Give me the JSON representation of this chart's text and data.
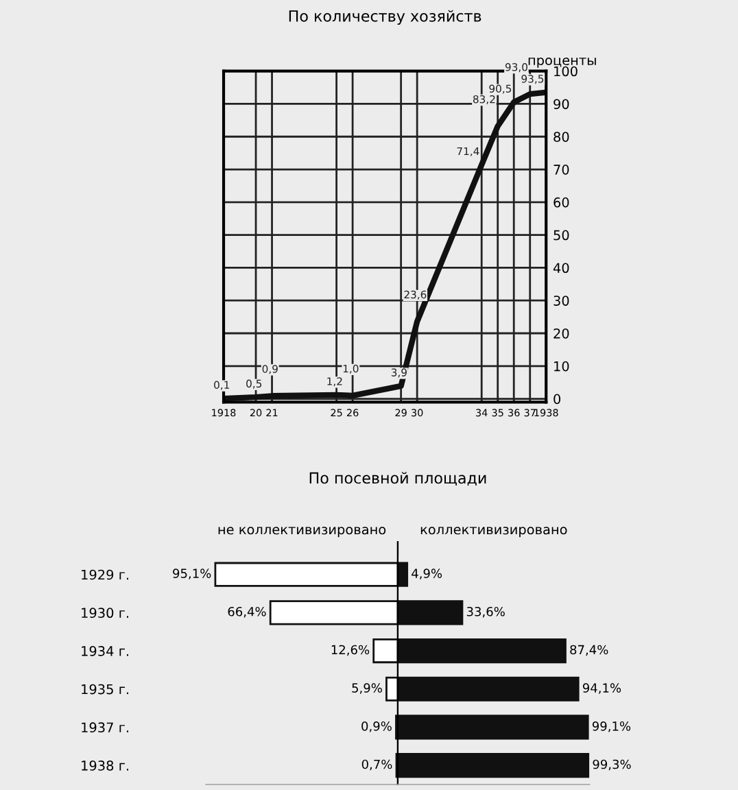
{
  "chart_data": [
    {
      "type": "line",
      "title": "По количеству хозяйств",
      "ylabel": "проценты",
      "x": [
        1918,
        1920,
        1921,
        1925,
        1926,
        1929,
        1930,
        1934,
        1935,
        1936,
        1937,
        1938
      ],
      "series": [
        {
          "color": "#111111",
          "values": [
            0.1,
            0.5,
            0.9,
            1.2,
            1.0,
            3.9,
            23.6,
            71.4,
            83.2,
            90.5,
            93.0,
            93.5
          ],
          "value_labels": [
            "0,1",
            "0,5",
            "0,9",
            "1,2",
            "1,0",
            "3,9",
            "23,6",
            "71,4",
            "83,2",
            "90,5",
            "93,0",
            "93,5"
          ]
        }
      ],
      "xlim": [
        1918,
        1938
      ],
      "ylim": [
        -1,
        100
      ],
      "xticks": [
        {
          "value": 1918,
          "label": "1918"
        },
        {
          "value": 1920,
          "label": "20"
        },
        {
          "value": 1921,
          "label": "21"
        },
        {
          "value": 1925,
          "label": "25"
        },
        {
          "value": 1926,
          "label": "26"
        },
        {
          "value": 1929,
          "label": "29"
        },
        {
          "value": 1930,
          "label": "30"
        },
        {
          "value": 1934,
          "label": "34"
        },
        {
          "value": 1935,
          "label": "35"
        },
        {
          "value": 1936,
          "label": "36"
        },
        {
          "value": 1937,
          "label": "37"
        },
        {
          "value": 1938,
          "label": "1938"
        }
      ],
      "yticks": [
        0,
        10,
        20,
        30,
        40,
        50,
        60,
        70,
        80,
        90,
        100
      ],
      "grid": true,
      "legend": false,
      "marker": "none",
      "line_style": "solid"
    },
    {
      "type": "bar",
      "orientation": "horizontal",
      "title": "По посевной площади",
      "categories": [
        "1929 г.",
        "1930 г.",
        "1934 г.",
        "1935 г.",
        "1937 г.",
        "1938 г."
      ],
      "series": [
        {
          "name": "не коллективизировано",
          "color": "#ffffff",
          "values": [
            95.1,
            66.4,
            12.6,
            5.9,
            0.9,
            0.7
          ],
          "value_labels": [
            "95,1%",
            "66,4%",
            "12,6%",
            "5,9%",
            "0,9%",
            "0,7%"
          ]
        }
      ],
      "xlim": [
        100,
        0
      ],
      "tick_labels": "y",
      "grid": false,
      "legend": false
    },
    {
      "type": "bar",
      "orientation": "horizontal",
      "categories": [
        null,
        null,
        null,
        null,
        null,
        null
      ],
      "series": [
        {
          "name": "коллективизировано",
          "color": "#111111",
          "values": [
            4.9,
            33.6,
            87.4,
            94.1,
            99.1,
            99.3
          ],
          "value_labels": [
            "4,9%",
            "33,6%",
            "87,4%",
            "94,1%",
            "99,1%",
            "99,3%"
          ]
        }
      ],
      "xlim": [
        0,
        100
      ],
      "tick_labels": false,
      "grid": false,
      "legend": false
    }
  ]
}
